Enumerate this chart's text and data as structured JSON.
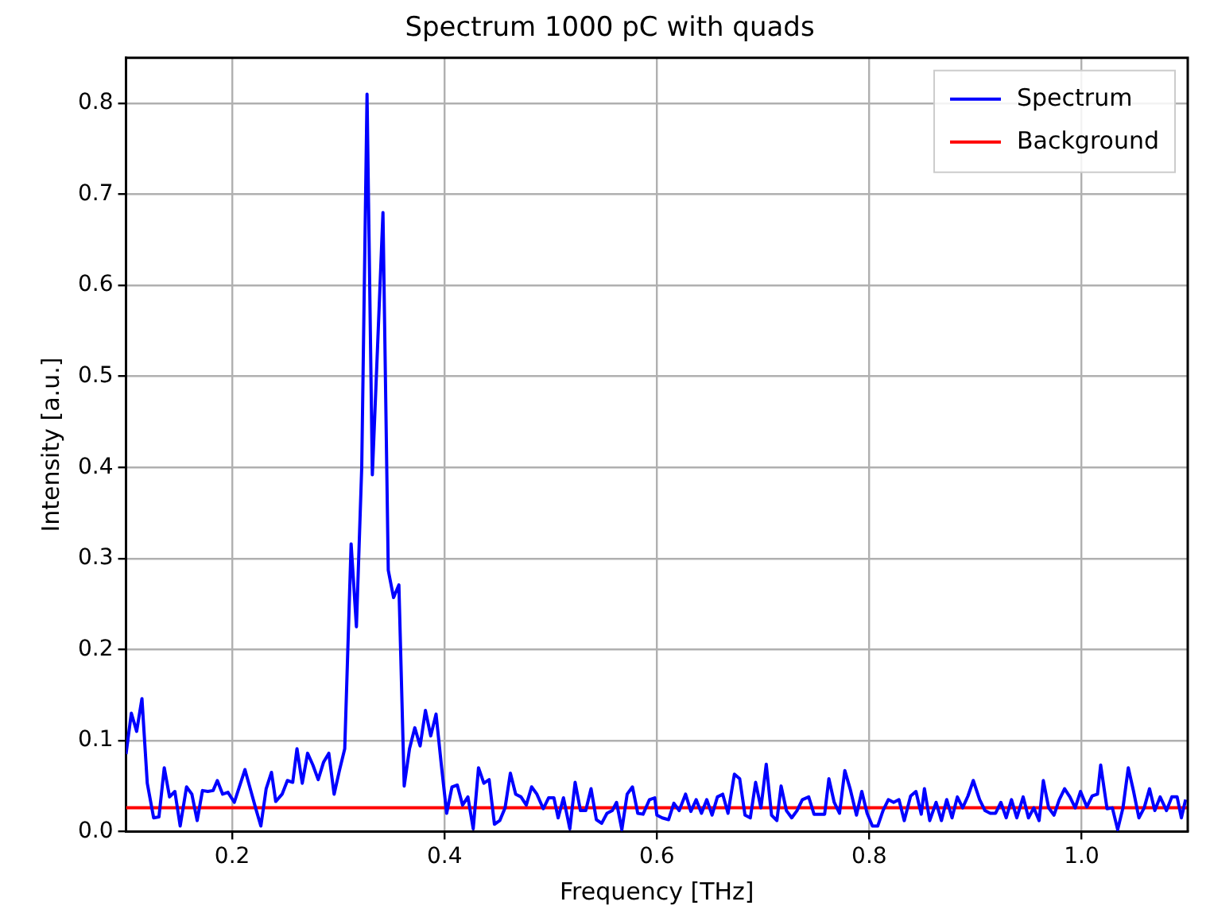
{
  "chart_data": {
    "type": "line",
    "title": "Spectrum 1000 pC with quads",
    "xlabel": "Frequency [THz]",
    "ylabel": "Intensity [a.u.]",
    "xlim": [
      0.1,
      1.1
    ],
    "ylim": [
      0,
      0.85
    ],
    "xticks": [
      0.2,
      0.4,
      0.6,
      0.8,
      {
        "value": 1,
        "label": "1.0"
      }
    ],
    "yticks": [
      {
        "value": 0,
        "label": "0.0"
      },
      0.1,
      0.2,
      0.3,
      0.4,
      0.5,
      0.6,
      0.7,
      0.8
    ],
    "grid": true,
    "legend": "top right",
    "marker": "none",
    "line_style": "solid",
    "series": [
      {
        "name": "Spectrum",
        "color": "#0000ff",
        "x": [
          0.1,
          0.105,
          0.11,
          0.115,
          0.12,
          0.126,
          0.131,
          0.136,
          0.141,
          0.146,
          0.151,
          0.157,
          0.162,
          0.167,
          0.172,
          0.177,
          0.182,
          0.186,
          0.191,
          0.196,
          0.202,
          0.207,
          0.212,
          0.217,
          0.222,
          0.227,
          0.232,
          0.237,
          0.241,
          0.247,
          0.252,
          0.257,
          0.261,
          0.266,
          0.271,
          0.276,
          0.281,
          0.286,
          0.291,
          0.296,
          0.301,
          0.306,
          0.312,
          0.317,
          0.322,
          0.327,
          0.332,
          0.337,
          0.342,
          0.347,
          0.352,
          0.357,
          0.362,
          0.367,
          0.372,
          0.377,
          0.382,
          0.387,
          0.392,
          0.397,
          0.402,
          0.407,
          0.412,
          0.417,
          0.422,
          0.427,
          0.432,
          0.437,
          0.442,
          0.447,
          0.452,
          0.457,
          0.462,
          0.467,
          0.472,
          0.477,
          0.482,
          0.487,
          0.493,
          0.498,
          0.503,
          0.507,
          0.512,
          0.518,
          0.523,
          0.528,
          0.533,
          0.538,
          0.543,
          0.548,
          0.553,
          0.558,
          0.562,
          0.567,
          0.572,
          0.577,
          0.582,
          0.587,
          0.593,
          0.598,
          0.6,
          0.605,
          0.611,
          0.616,
          0.621,
          0.627,
          0.632,
          0.637,
          0.642,
          0.647,
          0.652,
          0.657,
          0.662,
          0.667,
          0.673,
          0.678,
          0.683,
          0.688,
          0.693,
          0.698,
          0.703,
          0.708,
          0.713,
          0.717,
          0.722,
          0.727,
          0.732,
          0.737,
          0.743,
          0.748,
          0.753,
          0.758,
          0.762,
          0.767,
          0.772,
          0.777,
          0.782,
          0.788,
          0.793,
          0.798,
          0.803,
          0.808,
          0.813,
          0.818,
          0.823,
          0.828,
          0.833,
          0.839,
          0.844,
          0.849,
          0.852,
          0.857,
          0.863,
          0.868,
          0.873,
          0.878,
          0.883,
          0.888,
          0.893,
          0.898,
          0.904,
          0.909,
          0.914,
          0.919,
          0.924,
          0.929,
          0.934,
          0.939,
          0.945,
          0.95,
          0.955,
          0.96,
          0.964,
          0.969,
          0.974,
          0.979,
          0.984,
          0.989,
          0.994,
          0.999,
          1.005,
          1.01,
          1.015,
          1.018,
          1.024,
          1.029,
          1.034,
          1.039,
          1.044,
          1.049,
          1.054,
          1.059,
          1.064,
          1.069,
          1.074,
          1.08,
          1.085,
          1.09,
          1.094,
          1.098
        ],
        "values": [
          0.085,
          0.13,
          0.11,
          0.146,
          0.053,
          0.015,
          0.016,
          0.07,
          0.038,
          0.044,
          0.006,
          0.049,
          0.041,
          0.012,
          0.045,
          0.044,
          0.045,
          0.056,
          0.041,
          0.043,
          0.032,
          0.05,
          0.068,
          0.047,
          0.026,
          0.006,
          0.047,
          0.065,
          0.033,
          0.041,
          0.056,
          0.054,
          0.091,
          0.053,
          0.086,
          0.073,
          0.057,
          0.076,
          0.086,
          0.041,
          0.067,
          0.091,
          0.316,
          0.225,
          0.4,
          0.81,
          0.392,
          0.535,
          0.68,
          0.287,
          0.257,
          0.271,
          0.05,
          0.091,
          0.114,
          0.094,
          0.133,
          0.105,
          0.129,
          0.073,
          0.02,
          0.049,
          0.051,
          0.029,
          0.038,
          0.003,
          0.07,
          0.053,
          0.057,
          0.008,
          0.012,
          0.026,
          0.064,
          0.041,
          0.038,
          0.029,
          0.049,
          0.041,
          0.025,
          0.037,
          0.037,
          0.015,
          0.037,
          0.003,
          0.054,
          0.023,
          0.023,
          0.047,
          0.013,
          0.009,
          0.02,
          0.023,
          0.032,
          0.002,
          0.041,
          0.049,
          0.02,
          0.019,
          0.035,
          0.037,
          0.018,
          0.015,
          0.013,
          0.031,
          0.023,
          0.041,
          0.022,
          0.035,
          0.02,
          0.035,
          0.018,
          0.038,
          0.041,
          0.02,
          0.063,
          0.058,
          0.018,
          0.015,
          0.054,
          0.026,
          0.074,
          0.018,
          0.012,
          0.05,
          0.023,
          0.015,
          0.023,
          0.035,
          0.038,
          0.019,
          0.019,
          0.019,
          0.058,
          0.032,
          0.02,
          0.067,
          0.047,
          0.018,
          0.044,
          0.02,
          0.006,
          0.006,
          0.023,
          0.035,
          0.032,
          0.035,
          0.012,
          0.039,
          0.044,
          0.019,
          0.047,
          0.012,
          0.032,
          0.012,
          0.035,
          0.015,
          0.038,
          0.026,
          0.039,
          0.056,
          0.035,
          0.023,
          0.02,
          0.02,
          0.032,
          0.015,
          0.035,
          0.015,
          0.038,
          0.015,
          0.026,
          0.012,
          0.056,
          0.026,
          0.018,
          0.035,
          0.047,
          0.038,
          0.026,
          0.044,
          0.027,
          0.039,
          0.041,
          0.073,
          0.025,
          0.026,
          0.002,
          0.026,
          0.07,
          0.044,
          0.015,
          0.026,
          0.047,
          0.023,
          0.038,
          0.023,
          0.038,
          0.038,
          0.015,
          0.035
        ]
      },
      {
        "name": "Background",
        "color": "#ff0000",
        "x": [
          0.1,
          1.1
        ],
        "values": [
          0.026,
          0.026
        ]
      }
    ]
  }
}
